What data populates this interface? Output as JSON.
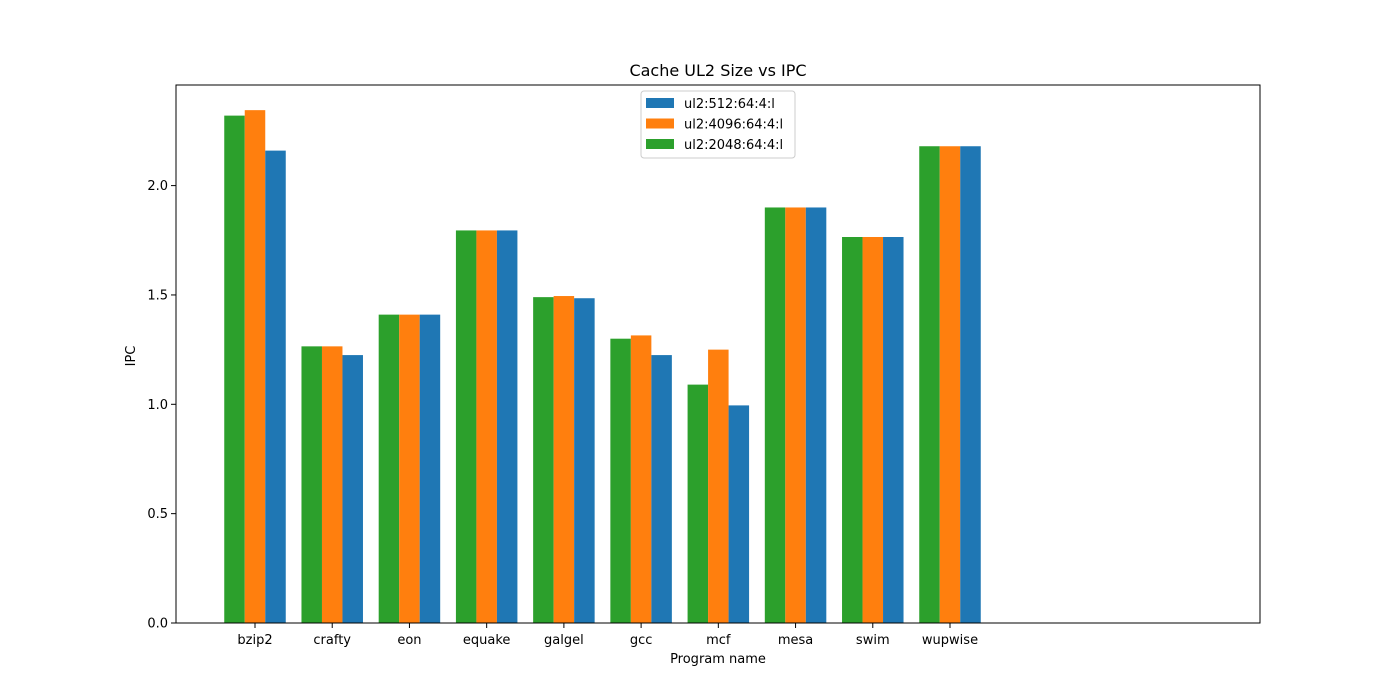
{
  "chart_data": {
    "type": "bar",
    "title": "Cache UL2 Size vs IPC",
    "xlabel": "Program name",
    "ylabel": "IPC",
    "ylim": [
      0,
      2.46
    ],
    "yticks": [
      "0.0",
      "0.5",
      "1.0",
      "1.5",
      "2.0"
    ],
    "categories": [
      "bzip2",
      "crafty",
      "eon",
      "equake",
      "galgel",
      "gcc",
      "mcf",
      "mesa",
      "swim",
      "wupwise"
    ],
    "series": [
      {
        "name": "ul2:2048:64:4:l",
        "color": "#2ca02c",
        "values": [
          2.32,
          1.265,
          1.41,
          1.795,
          1.49,
          1.3,
          1.09,
          1.9,
          1.765,
          2.18
        ]
      },
      {
        "name": "ul2:4096:64:4:l",
        "color": "#ff7f0e",
        "values": [
          2.345,
          1.265,
          1.41,
          1.795,
          1.495,
          1.315,
          1.25,
          1.9,
          1.765,
          2.18
        ]
      },
      {
        "name": "ul2:512:64:4:l",
        "color": "#1f77b4",
        "values": [
          2.16,
          1.225,
          1.41,
          1.795,
          1.485,
          1.225,
          0.995,
          1.9,
          1.765,
          2.18
        ]
      }
    ],
    "legend_order": [
      2,
      1,
      0
    ],
    "legend_position": "top-center",
    "grid": false
  }
}
